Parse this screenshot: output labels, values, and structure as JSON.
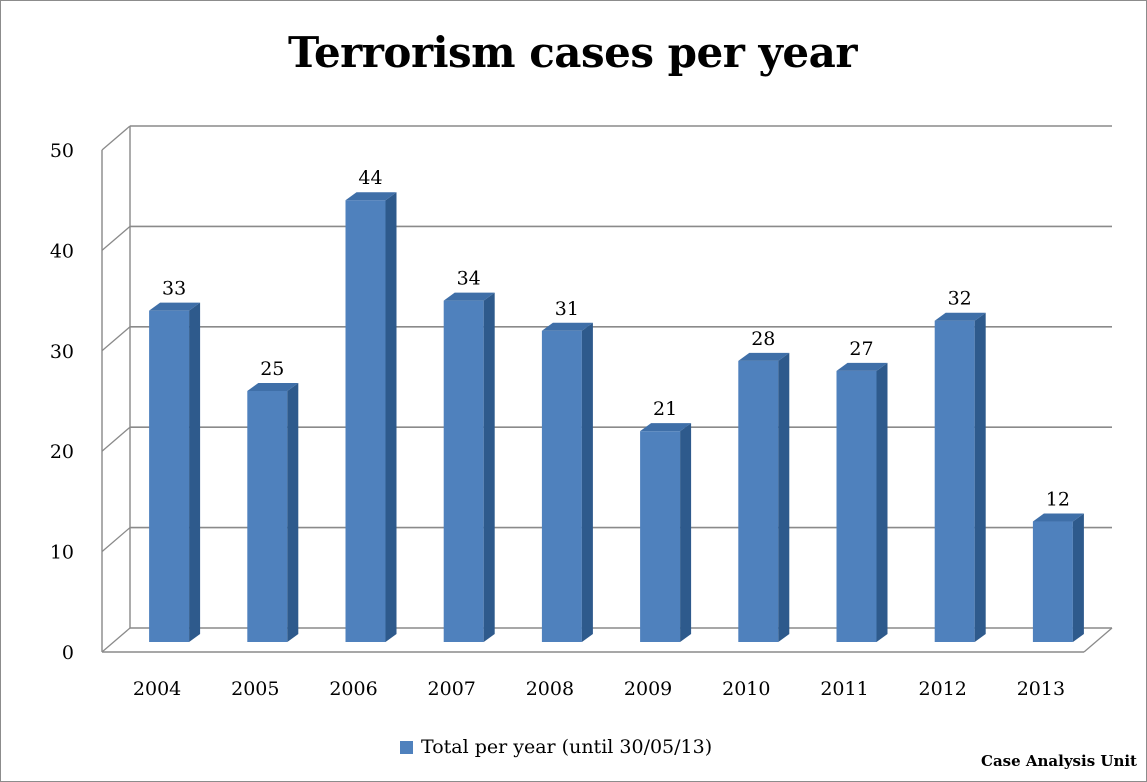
{
  "chart_data": {
    "type": "bar",
    "title": "Terrorism cases per year",
    "categories": [
      "2004",
      "2005",
      "2006",
      "2007",
      "2008",
      "2009",
      "2010",
      "2011",
      "2012",
      "2013"
    ],
    "series": [
      {
        "name": "Total per year (until 30/05/13)",
        "values": [
          33,
          25,
          44,
          34,
          31,
          21,
          28,
          27,
          32,
          12
        ],
        "color": "#4f81bd"
      }
    ],
    "ylim": [
      0,
      50
    ],
    "yticks": [
      0,
      10,
      20,
      30,
      40,
      50
    ],
    "grid": true,
    "legend_position": "bottom",
    "bar_style": "3d-column"
  },
  "source_note": "Case Analysis Unit"
}
